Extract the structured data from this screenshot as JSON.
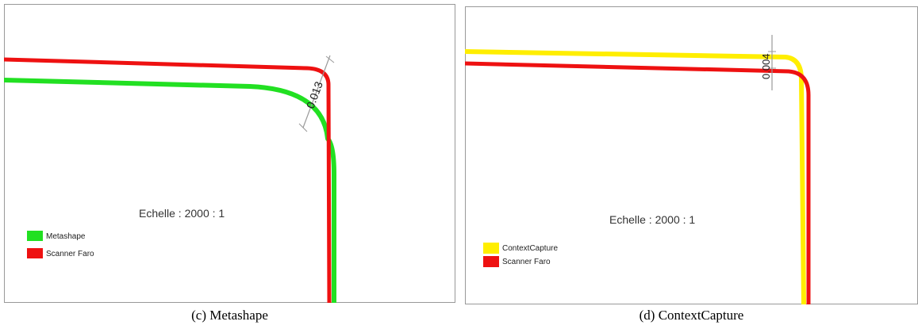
{
  "panels": [
    {
      "caption": "(c) Metashape",
      "scale": "Echelle : 2000 : 1",
      "measure": "0.013",
      "legend": [
        {
          "label": "Metashape",
          "color": "#22e022"
        },
        {
          "label": "Scanner Faro",
          "color": "#ee1111"
        }
      ]
    },
    {
      "caption": "(d) ContextCapture",
      "scale": "Echelle : 2000 : 1",
      "measure": "0.004",
      "legend": [
        {
          "label": "ContextCapture",
          "color": "#ffee00"
        },
        {
          "label": "Scanner Faro",
          "color": "#ee1111"
        }
      ]
    }
  ],
  "colors": {
    "frame": "#999999",
    "dimension_line": "#999999"
  }
}
